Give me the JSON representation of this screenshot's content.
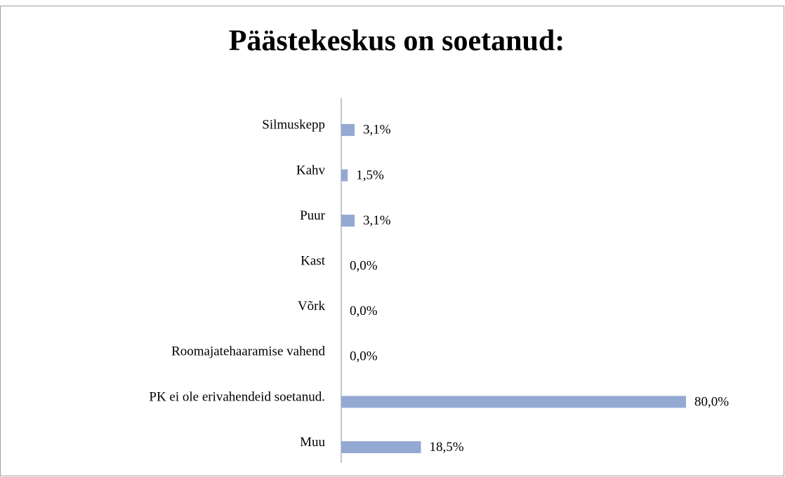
{
  "chart_data": {
    "type": "bar",
    "orientation": "horizontal",
    "title": "Päästekeskus on soetanud:",
    "categories": [
      "Silmuskepp",
      "Kahv",
      "Puur",
      "Kast",
      "Võrk",
      "Roomajatehaaramise vahend",
      "PK ei ole erivahendeid soetanud.",
      "Muu"
    ],
    "values": [
      3.1,
      1.5,
      3.1,
      0,
      0,
      0,
      80,
      18.5
    ],
    "value_labels": [
      "3,1%",
      "1,5%",
      "3,1%",
      "0,0%",
      "0,0%",
      "0,0%",
      "80,0%",
      "18,5%"
    ],
    "color": "#94a9d1"
  }
}
